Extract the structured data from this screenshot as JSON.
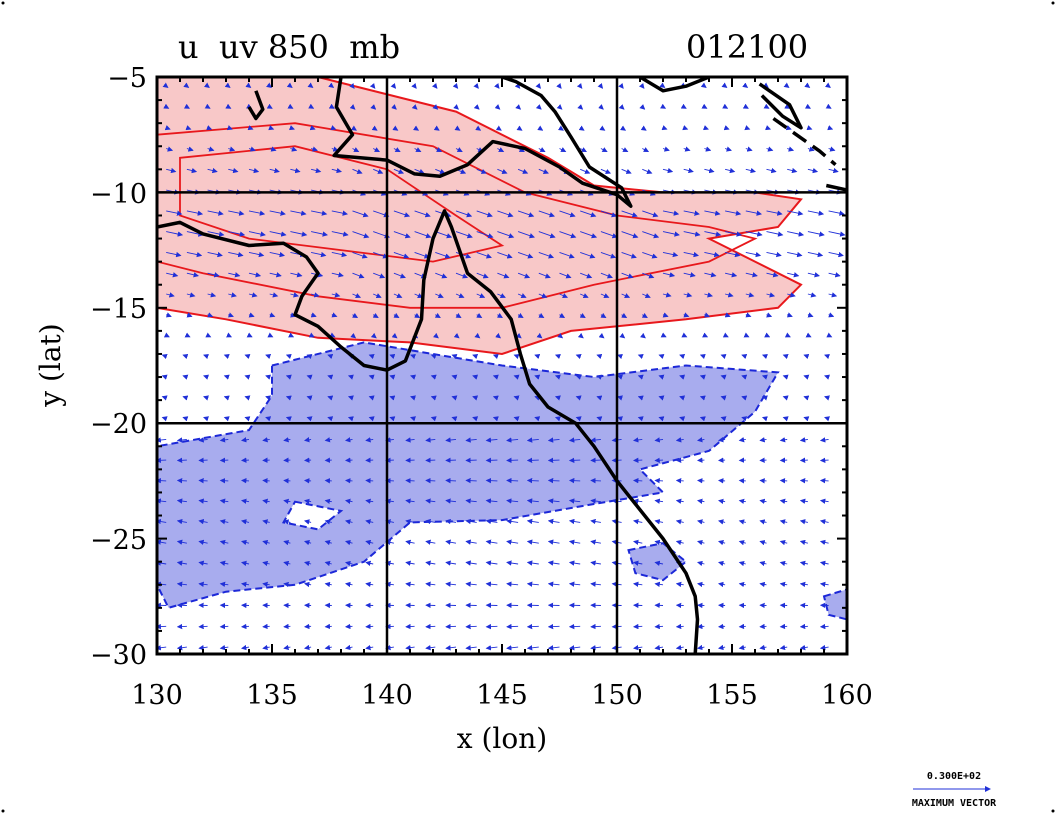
{
  "title": {
    "left": "u  uv 850  mb",
    "right": "012100"
  },
  "axes": {
    "xlabel": "x (lon)",
    "ylabel": "y (lat)",
    "xticks": [
      "130",
      "135",
      "140",
      "145",
      "150",
      "155",
      "160"
    ],
    "yticks": [
      "−5",
      "−10",
      "−15",
      "−20",
      "−25",
      "−30"
    ]
  },
  "legend": {
    "value": "0.300E+02",
    "caption": "MAXIMUM VECTOR"
  },
  "colors": {
    "positive_fill": "#f8c8c8",
    "positive_line": "#e8181c",
    "negative_fill": "#a8acee",
    "negative_line": "#1c28d8",
    "vectors": "#2030d8",
    "coast": "#000000",
    "grid": "#000000"
  },
  "chart_data": {
    "type": "map",
    "variable": "u",
    "level": "850 mb",
    "date": "012100",
    "xlim": [
      130,
      160
    ],
    "ylim": [
      -30,
      -5
    ],
    "x_major_ticks": [
      130,
      135,
      140,
      145,
      150,
      155,
      160
    ],
    "y_major_ticks": [
      -5,
      -10,
      -15,
      -20,
      -25,
      -30
    ],
    "grid_lines_x": [
      140,
      150
    ],
    "grid_lines_y": [
      -10,
      -20
    ],
    "layers": [
      "positive u (shaded red, solid contours)",
      "negative u (shaded blue, dashed contours)",
      "wind vectors uv",
      "coastlines"
    ],
    "positive_region": [
      [
        130,
        -5
      ],
      [
        137,
        -5
      ],
      [
        143,
        -6.5
      ],
      [
        147,
        -8.5
      ],
      [
        149,
        -9.7
      ],
      [
        152,
        -10
      ],
      [
        156,
        -10
      ],
      [
        158,
        -10.3
      ],
      [
        157,
        -11.5
      ],
      [
        154,
        -12
      ],
      [
        156,
        -13
      ],
      [
        158,
        -14
      ],
      [
        157,
        -15
      ],
      [
        153,
        -15.5
      ],
      [
        148,
        -16
      ],
      [
        145,
        -17
      ],
      [
        141,
        -16.5
      ],
      [
        137,
        -16.3
      ],
      [
        133,
        -15.5
      ],
      [
        130,
        -15
      ]
    ],
    "positive_inner_contours": [
      [
        [
          130,
          -7.5
        ],
        [
          136,
          -7
        ],
        [
          142,
          -8
        ],
        [
          146,
          -10
        ],
        [
          150,
          -11
        ],
        [
          154,
          -11.5
        ],
        [
          156,
          -12
        ],
        [
          154,
          -13
        ],
        [
          149,
          -14
        ],
        [
          145,
          -15
        ],
        [
          141,
          -15
        ],
        [
          137,
          -14.5
        ],
        [
          132,
          -13.5
        ],
        [
          130,
          -13
        ]
      ],
      [
        [
          131,
          -8.5
        ],
        [
          136,
          -8
        ],
        [
          140,
          -9
        ],
        [
          143,
          -11
        ],
        [
          145,
          -12.3
        ],
        [
          142,
          -13
        ],
        [
          138,
          -12.5
        ],
        [
          134,
          -12
        ],
        [
          131,
          -11
        ]
      ]
    ],
    "negative_region": [
      [
        135,
        -17.5
      ],
      [
        139,
        -16.5
      ],
      [
        142,
        -17
      ],
      [
        145,
        -17.5
      ],
      [
        149,
        -18
      ],
      [
        153,
        -17.5
      ],
      [
        157,
        -17.8
      ],
      [
        156,
        -19.5
      ],
      [
        154,
        -21.2
      ],
      [
        151,
        -22
      ],
      [
        152,
        -23
      ],
      [
        149,
        -23.5
      ],
      [
        145,
        -24.2
      ],
      [
        141,
        -24.3
      ],
      [
        139,
        -26
      ],
      [
        136,
        -27
      ],
      [
        133,
        -27.3
      ],
      [
        130.5,
        -28
      ],
      [
        130,
        -27
      ],
      [
        130,
        -21
      ],
      [
        134,
        -20.3
      ],
      [
        135,
        -18.8
      ]
    ],
    "negative_holes": [
      [
        [
          136,
          -23.4
        ],
        [
          138,
          -23.8
        ],
        [
          137,
          -24.6
        ],
        [
          135.5,
          -24.3
        ]
      ]
    ],
    "negative_extra": [
      [
        [
          150.5,
          -25.5
        ],
        [
          152,
          -25.2
        ],
        [
          153,
          -26
        ],
        [
          152,
          -26.8
        ],
        [
          150.8,
          -26.5
        ]
      ],
      [
        [
          159,
          -27.5
        ],
        [
          160,
          -27.2
        ],
        [
          160,
          -28.5
        ],
        [
          159.2,
          -28.3
        ]
      ]
    ],
    "vector_field": "approx. easterly flow; strongest along 10-15S near 140-150E (about 30 m/s max)",
    "coastline_mainland": [
      [
        130,
        -11.5
      ],
      [
        131,
        -11.3
      ],
      [
        132,
        -11.8
      ],
      [
        134,
        -12.3
      ],
      [
        135.5,
        -12.2
      ],
      [
        136.5,
        -12.8
      ],
      [
        137,
        -13.5
      ],
      [
        136.3,
        -14.5
      ],
      [
        136,
        -15.3
      ],
      [
        137,
        -15.8
      ],
      [
        138,
        -16.7
      ],
      [
        139,
        -17.5
      ],
      [
        140,
        -17.7
      ],
      [
        140.8,
        -17.3
      ],
      [
        141.5,
        -15.5
      ],
      [
        141.6,
        -13.8
      ],
      [
        142,
        -12
      ],
      [
        142.5,
        -10.8
      ],
      [
        142.8,
        -11.5
      ],
      [
        143.5,
        -13.5
      ],
      [
        144.5,
        -14.3
      ],
      [
        145.4,
        -15.5
      ],
      [
        145.8,
        -17
      ],
      [
        146.2,
        -18.3
      ],
      [
        147,
        -19.3
      ],
      [
        148.2,
        -20
      ],
      [
        149,
        -21
      ],
      [
        150,
        -22.5
      ],
      [
        150.8,
        -23.5
      ],
      [
        152,
        -25
      ],
      [
        153,
        -26.5
      ],
      [
        153.4,
        -27.5
      ],
      [
        153.5,
        -28.5
      ],
      [
        153.4,
        -30
      ]
    ],
    "coastline_png": [
      [
        138,
        -5
      ],
      [
        137.8,
        -6.3
      ],
      [
        138.5,
        -7.5
      ],
      [
        137.7,
        -8.4
      ],
      [
        140,
        -8.6
      ],
      [
        141.2,
        -9.2
      ],
      [
        142.3,
        -9.3
      ],
      [
        143.5,
        -8.8
      ],
      [
        144.6,
        -7.8
      ],
      [
        146,
        -8.1
      ],
      [
        147.5,
        -8.9
      ],
      [
        148.5,
        -9.6
      ],
      [
        150,
        -10.1
      ],
      [
        150.6,
        -10.6
      ],
      [
        150.2,
        -9.8
      ],
      [
        148.8,
        -8.9
      ],
      [
        148,
        -7.6
      ],
      [
        147.3,
        -6.5
      ],
      [
        146.7,
        -5.8
      ],
      [
        145.6,
        -5.2
      ],
      [
        145,
        -5
      ]
    ],
    "coastline_islands": [
      [
        [
          151,
          -5.0
        ],
        [
          152,
          -5.6
        ],
        [
          153,
          -5.4
        ],
        [
          154,
          -5.0
        ]
      ],
      [
        [
          156.2,
          -5.3
        ],
        [
          157.5,
          -6.2
        ],
        [
          158,
          -7.2
        ],
        [
          157.2,
          -6.7
        ],
        [
          156.3,
          -5.8
        ]
      ],
      [
        [
          159.1,
          -9.7
        ],
        [
          160,
          -9.9
        ]
      ],
      [
        [
          134.3,
          -5.6
        ],
        [
          134.6,
          -6.4
        ],
        [
          134.3,
          -6.8
        ],
        [
          134.0,
          -6.3
        ]
      ]
    ],
    "dashed_line": [
      [
        156.8,
        -6.8
      ],
      [
        158.8,
        -8.2
      ],
      [
        159.5,
        -8.8
      ]
    ]
  }
}
